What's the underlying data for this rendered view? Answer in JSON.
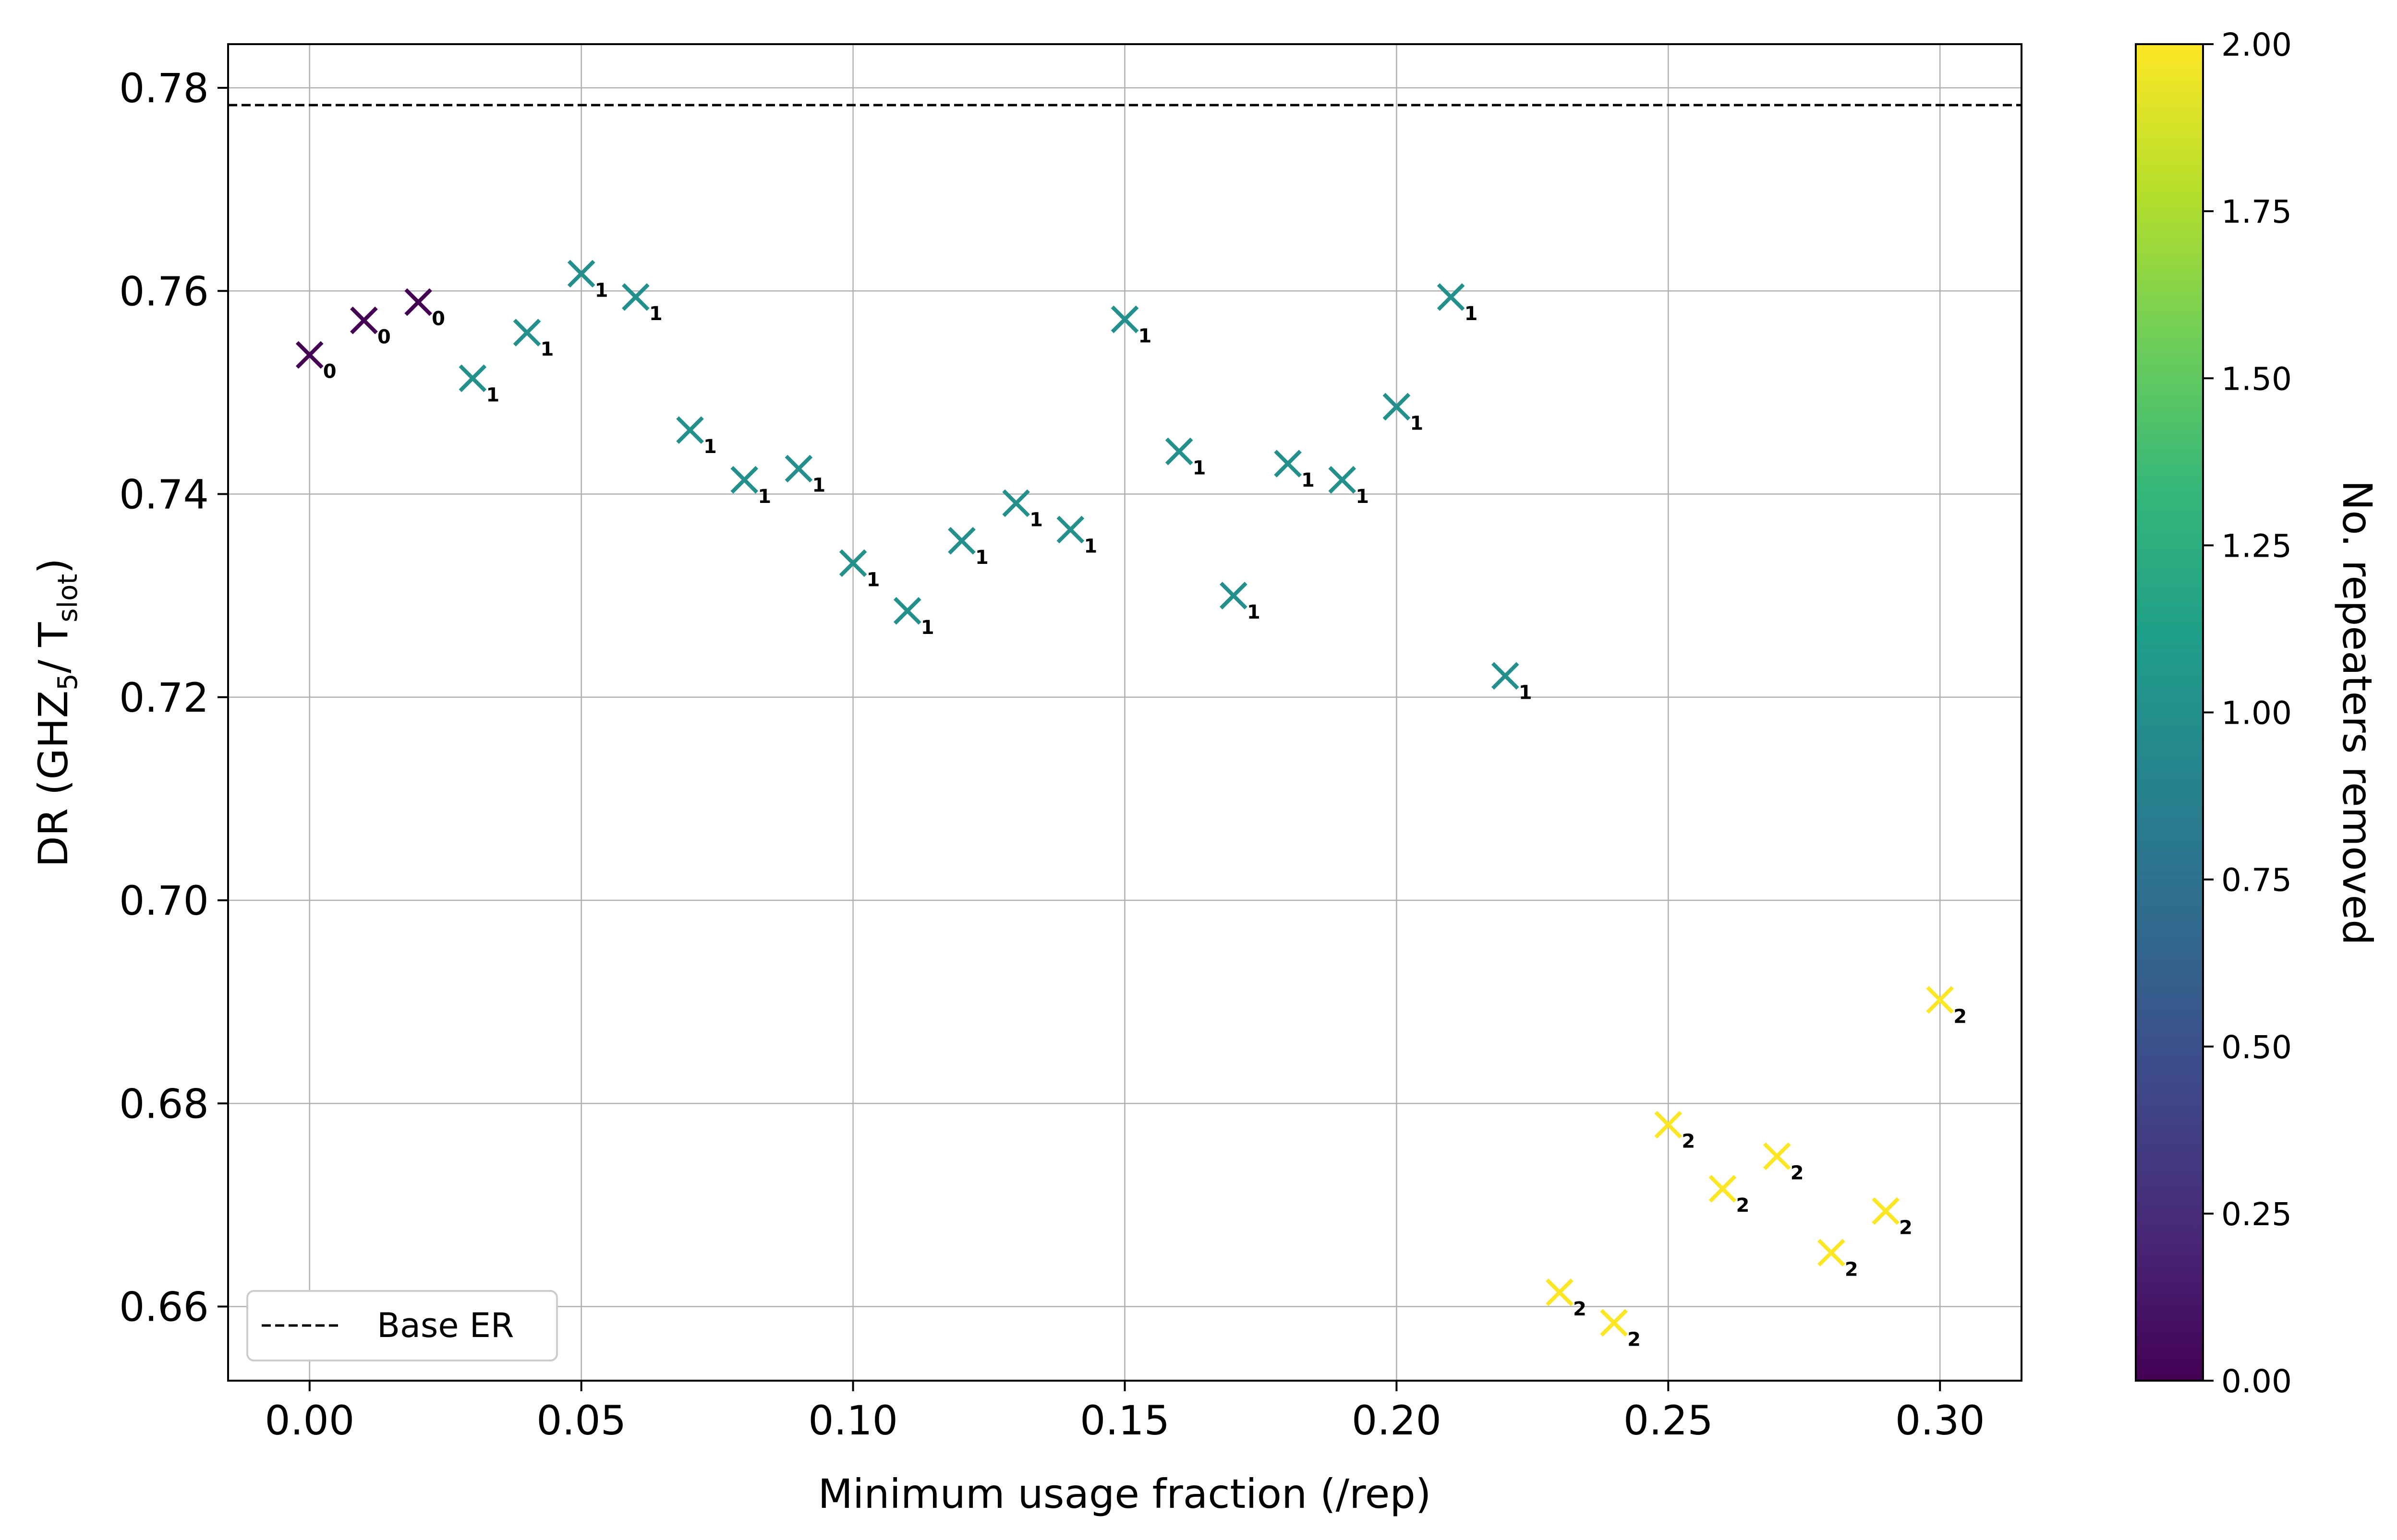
{
  "chart_data": {
    "type": "scatter",
    "xlabel": "Minimum usage fraction (/rep)",
    "ylabel_parts": {
      "prefix": "DR (GHZ",
      "sub1": "5",
      "mid": "/ T",
      "sub2": "slot",
      "suffix": ")"
    },
    "xlim": [
      -0.015,
      0.315
    ],
    "ylim": [
      0.6527,
      0.7843
    ],
    "xticks": [
      0.0,
      0.05,
      0.1,
      0.15,
      0.2,
      0.25,
      0.3
    ],
    "xtick_labels": [
      "0.00",
      "0.05",
      "0.10",
      "0.15",
      "0.20",
      "0.25",
      "0.30"
    ],
    "yticks": [
      0.66,
      0.68,
      0.7,
      0.72,
      0.74,
      0.76,
      0.78
    ],
    "ytick_labels": [
      "0.66",
      "0.68",
      "0.70",
      "0.72",
      "0.74",
      "0.76",
      "0.78"
    ],
    "grid": true,
    "baseline": {
      "name": "Base ER",
      "value": 0.7783,
      "style": "dashed"
    },
    "legend": {
      "placement": "lower-left",
      "entries": [
        "Base ER"
      ]
    },
    "colorbar": {
      "label": "No. repeaters removed",
      "range": [
        0,
        2
      ],
      "ticks": [
        0.0,
        0.25,
        0.5,
        0.75,
        1.0,
        1.25,
        1.5,
        1.75,
        2.0
      ],
      "tick_labels": [
        "0.00",
        "0.25",
        "0.50",
        "0.75",
        "1.00",
        "1.25",
        "1.50",
        "1.75",
        "2.00"
      ],
      "colormap": "viridis",
      "colors": [
        "#440154",
        "#482878",
        "#3e4989",
        "#31688e",
        "#26828e",
        "#1f9e89",
        "#35b779",
        "#6ece58",
        "#b5de2b",
        "#fde725"
      ]
    },
    "marker": "x",
    "points": [
      {
        "x": 0.0,
        "y": 0.7537,
        "removed": 0,
        "label": "0"
      },
      {
        "x": 0.01,
        "y": 0.7571,
        "removed": 0,
        "label": "0"
      },
      {
        "x": 0.02,
        "y": 0.7589,
        "removed": 0,
        "label": "0"
      },
      {
        "x": 0.03,
        "y": 0.7514,
        "removed": 1,
        "label": "1"
      },
      {
        "x": 0.04,
        "y": 0.7559,
        "removed": 1,
        "label": "1"
      },
      {
        "x": 0.05,
        "y": 0.7617,
        "removed": 1,
        "label": "1"
      },
      {
        "x": 0.06,
        "y": 0.7594,
        "removed": 1,
        "label": "1"
      },
      {
        "x": 0.07,
        "y": 0.7463,
        "removed": 1,
        "label": "1"
      },
      {
        "x": 0.08,
        "y": 0.7414,
        "removed": 1,
        "label": "1"
      },
      {
        "x": 0.09,
        "y": 0.7425,
        "removed": 1,
        "label": "1"
      },
      {
        "x": 0.1,
        "y": 0.7332,
        "removed": 1,
        "label": "1"
      },
      {
        "x": 0.11,
        "y": 0.7285,
        "removed": 1,
        "label": "1"
      },
      {
        "x": 0.12,
        "y": 0.7354,
        "removed": 1,
        "label": "1"
      },
      {
        "x": 0.13,
        "y": 0.7391,
        "removed": 1,
        "label": "1"
      },
      {
        "x": 0.14,
        "y": 0.7365,
        "removed": 1,
        "label": "1"
      },
      {
        "x": 0.15,
        "y": 0.7572,
        "removed": 1,
        "label": "1"
      },
      {
        "x": 0.16,
        "y": 0.7442,
        "removed": 1,
        "label": "1"
      },
      {
        "x": 0.17,
        "y": 0.73,
        "removed": 1,
        "label": "1"
      },
      {
        "x": 0.18,
        "y": 0.743,
        "removed": 1,
        "label": "1"
      },
      {
        "x": 0.19,
        "y": 0.7414,
        "removed": 1,
        "label": "1"
      },
      {
        "x": 0.2,
        "y": 0.7486,
        "removed": 1,
        "label": "1"
      },
      {
        "x": 0.21,
        "y": 0.7594,
        "removed": 1,
        "label": "1"
      },
      {
        "x": 0.22,
        "y": 0.7221,
        "removed": 1,
        "label": "1"
      },
      {
        "x": 0.23,
        "y": 0.6614,
        "removed": 2,
        "label": "2"
      },
      {
        "x": 0.24,
        "y": 0.6584,
        "removed": 2,
        "label": "2"
      },
      {
        "x": 0.25,
        "y": 0.6779,
        "removed": 2,
        "label": "2"
      },
      {
        "x": 0.26,
        "y": 0.6716,
        "removed": 2,
        "label": "2"
      },
      {
        "x": 0.27,
        "y": 0.6748,
        "removed": 2,
        "label": "2"
      },
      {
        "x": 0.28,
        "y": 0.6653,
        "removed": 2,
        "label": "2"
      },
      {
        "x": 0.29,
        "y": 0.6694,
        "removed": 2,
        "label": "2"
      },
      {
        "x": 0.3,
        "y": 0.6902,
        "removed": 2,
        "label": "2"
      }
    ]
  }
}
